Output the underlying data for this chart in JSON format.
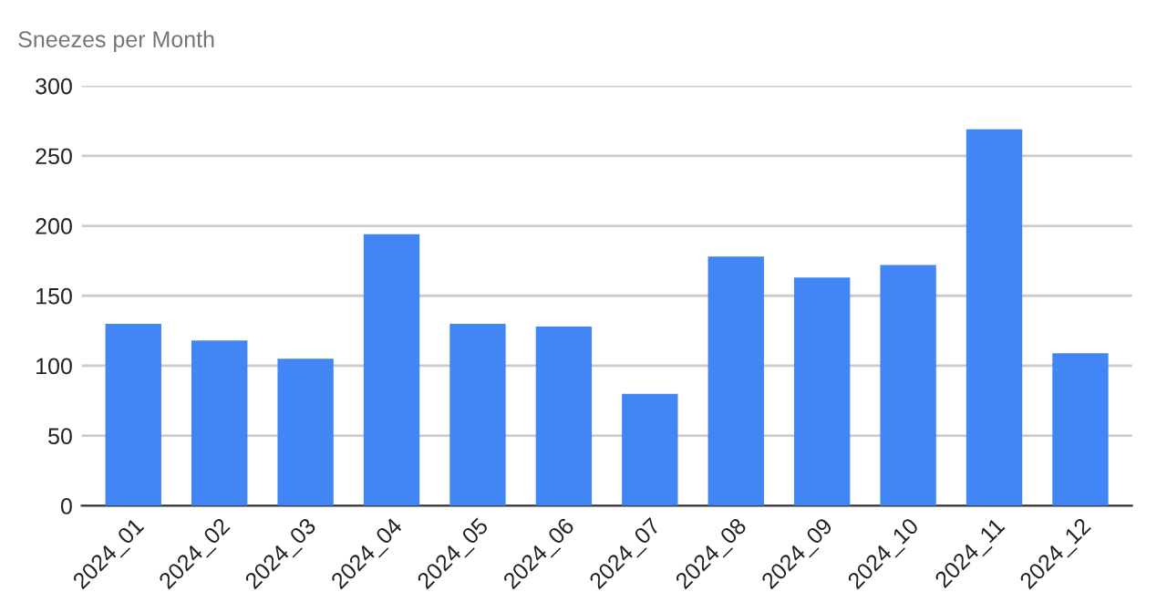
{
  "chart_data": {
    "type": "bar",
    "title": "Sneezes per Month",
    "categories": [
      "2024_01",
      "2024_02",
      "2024_03",
      "2024_04",
      "2024_05",
      "2024_06",
      "2024_07",
      "2024_08",
      "2024_09",
      "2024_10",
      "2024_11",
      "2024_12"
    ],
    "values": [
      130,
      118,
      105,
      194,
      130,
      128,
      80,
      178,
      163,
      172,
      269,
      109
    ],
    "color": "#4285f4",
    "ylim": [
      0,
      300
    ],
    "yticks": [
      0,
      50,
      100,
      150,
      200,
      250,
      300
    ],
    "grid": "y"
  }
}
